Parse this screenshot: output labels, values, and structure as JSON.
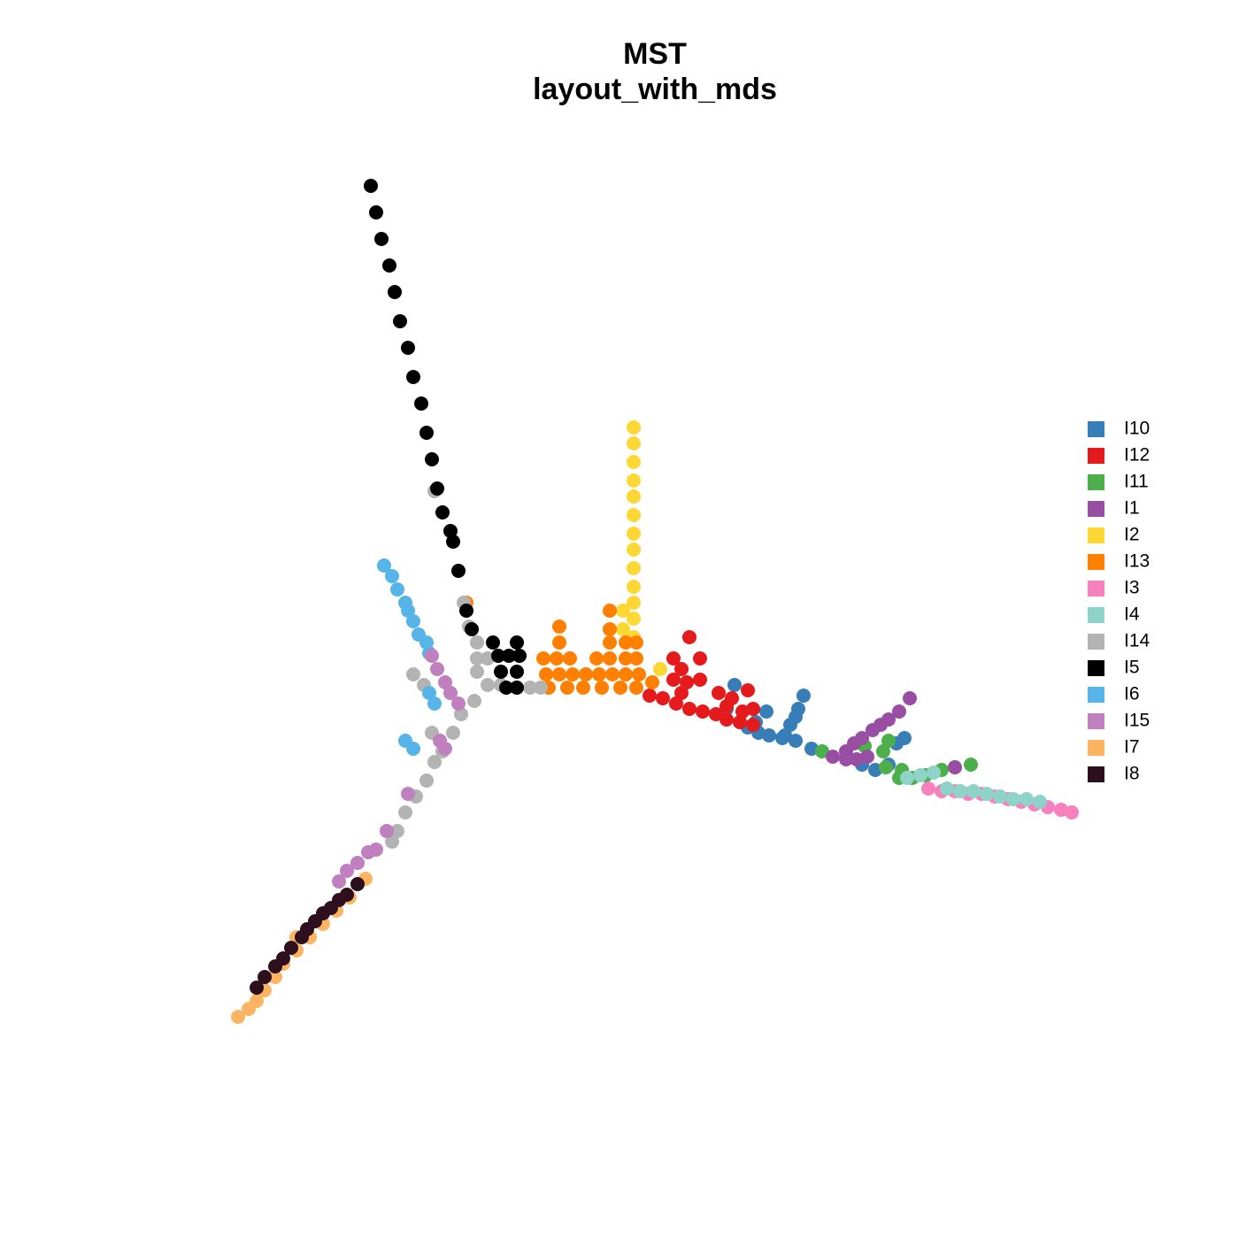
{
  "chart_data": {
    "type": "scatter",
    "title": "MST",
    "subtitle": "layout_with_mds",
    "xlim": [
      -2.4,
      2.2
    ],
    "ylim": [
      -2.0,
      2.0
    ],
    "series": [
      {
        "name": "I10",
        "color": "#377eb8",
        "x": [
          0.3,
          0.27,
          0.35,
          0.39,
          0.43,
          0.48,
          0.53,
          0.59,
          0.42,
          0.38,
          0.56,
          0.54,
          0.53,
          0.51,
          0.49,
          0.78,
          0.83,
          0.88,
          0.94,
          0.91
        ],
        "y": [
          0.02,
          -0.07,
          -0.14,
          -0.16,
          -0.17,
          -0.18,
          -0.19,
          -0.22,
          -0.08,
          -0.12,
          -0.02,
          -0.07,
          -0.1,
          -0.13,
          -0.17,
          -0.28,
          -0.3,
          -0.28,
          -0.18,
          -0.2
        ]
      },
      {
        "name": "I12",
        "color": "#e41a1c",
        "x": [
          -0.02,
          0.03,
          0.08,
          0.13,
          0.18,
          0.23,
          0.27,
          0.32,
          0.37,
          0.13,
          0.07,
          0.17,
          0.1,
          0.07,
          0.12,
          0.17,
          0.24,
          0.29,
          0.35,
          0.37,
          0.33,
          0.27,
          0.1
        ],
        "y": [
          -0.02,
          -0.03,
          -0.05,
          -0.07,
          -0.08,
          -0.09,
          -0.11,
          -0.12,
          -0.13,
          0.2,
          0.12,
          0.12,
          0.08,
          0.04,
          0.03,
          0.04,
          -0.01,
          -0.03,
          0.0,
          -0.07,
          -0.08,
          -0.06,
          -0.01
        ]
      },
      {
        "name": "I11",
        "color": "#4daf4a",
        "x": [
          0.63,
          0.79,
          0.86,
          0.88,
          0.87,
          0.92,
          0.97,
          1.02,
          1.08,
          1.13,
          1.19,
          0.93
        ],
        "y": [
          -0.23,
          -0.21,
          -0.23,
          -0.19,
          -0.29,
          -0.33,
          -0.33,
          -0.32,
          -0.3,
          -0.29,
          -0.28,
          -0.3
        ]
      },
      {
        "name": "I1",
        "color": "#984ea3",
        "x": [
          0.67,
          0.72,
          0.75,
          0.78,
          0.82,
          0.85,
          0.88,
          0.92,
          0.96,
          0.72,
          0.76,
          0.8,
          1.13
        ],
        "y": [
          -0.25,
          -0.23,
          -0.2,
          -0.18,
          -0.15,
          -0.13,
          -0.11,
          -0.08,
          -0.03,
          -0.26,
          -0.26,
          -0.25,
          -0.29
        ]
      },
      {
        "name": "I2",
        "color": "#fdd835",
        "x": [
          -0.08,
          -0.08,
          -0.08,
          -0.08,
          -0.08,
          -0.08,
          -0.08,
          -0.08,
          -0.08,
          -0.08,
          -0.08,
          -0.08,
          -0.08,
          -0.12,
          -0.12,
          0.02
        ],
        "y": [
          0.99,
          0.93,
          0.86,
          0.79,
          0.73,
          0.66,
          0.59,
          0.53,
          0.46,
          0.39,
          0.33,
          0.27,
          0.2,
          0.3,
          0.23,
          0.08
        ]
      },
      {
        "name": "I13",
        "color": "#ff7f00",
        "x": [
          -0.17,
          -0.36,
          -0.17,
          -0.36,
          -0.17,
          -0.11,
          -0.07,
          -0.42,
          -0.37,
          -0.32,
          -0.22,
          -0.17,
          -0.11,
          -0.07,
          -0.41,
          -0.36,
          -0.31,
          -0.26,
          -0.21,
          -0.16,
          -0.11,
          -0.06,
          -0.01,
          -0.71,
          -0.4,
          -0.33,
          -0.27,
          -0.2,
          -0.13,
          -0.07
        ],
        "y": [
          0.3,
          0.24,
          0.23,
          0.18,
          0.18,
          0.18,
          0.18,
          0.12,
          0.12,
          0.12,
          0.12,
          0.12,
          0.12,
          0.12,
          0.06,
          0.06,
          0.06,
          0.06,
          0.06,
          0.06,
          0.06,
          0.06,
          0.03,
          0.33,
          0.01,
          0.01,
          0.01,
          0.01,
          0.01,
          0.01
        ]
      },
      {
        "name": "I3",
        "color": "#f781bf",
        "x": [
          1.03,
          1.08,
          1.13,
          1.18,
          1.23,
          1.28,
          1.33,
          1.38,
          1.43,
          1.48,
          1.53,
          1.57
        ],
        "y": [
          -0.37,
          -0.38,
          -0.38,
          -0.39,
          -0.39,
          -0.4,
          -0.41,
          -0.42,
          -0.43,
          -0.44,
          -0.45,
          -0.46
        ]
      },
      {
        "name": "I4",
        "color": "#8dd3c7",
        "x": [
          0.95,
          1.0,
          1.05,
          1.1,
          1.15,
          1.2,
          1.25,
          1.3,
          1.35,
          1.4,
          1.45
        ],
        "y": [
          -0.33,
          -0.32,
          -0.31,
          -0.37,
          -0.38,
          -0.38,
          -0.39,
          -0.4,
          -0.41,
          -0.41,
          -0.42
        ]
      },
      {
        "name": "I14",
        "color": "#b3b3b3",
        "x": [
          -0.83,
          -0.72,
          -0.7,
          -0.67,
          -0.67,
          -0.63,
          -0.67,
          -0.63,
          -0.58,
          -0.47,
          -0.43,
          -0.68,
          -0.73,
          -0.76,
          -0.8,
          -0.84,
          -0.91,
          -0.87,
          -0.83,
          -0.86,
          -0.9,
          -0.94,
          -0.97,
          -0.99
        ],
        "y": [
          0.75,
          0.33,
          0.24,
          0.18,
          0.12,
          0.12,
          0.07,
          0.02,
          0.02,
          0.01,
          0.01,
          -0.04,
          -0.09,
          -0.16,
          -0.23,
          -0.16,
          0.06,
          0.02,
          -0.27,
          -0.34,
          -0.4,
          -0.46,
          -0.53,
          -0.57
        ]
      },
      {
        "name": "I5",
        "color": "#000000",
        "x": [
          -1.07,
          -1.05,
          -1.03,
          -1.0,
          -0.98,
          -0.96,
          -0.93,
          -0.91,
          -0.88,
          -0.86,
          -0.84,
          -0.82,
          -0.8,
          -0.77,
          -0.76,
          -0.74,
          -0.71,
          -0.69,
          -0.61,
          -0.52,
          -0.59,
          -0.55,
          -0.51,
          -0.58,
          -0.52,
          -0.56,
          -0.52
        ],
        "y": [
          1.9,
          1.8,
          1.7,
          1.6,
          1.5,
          1.39,
          1.29,
          1.18,
          1.08,
          0.97,
          0.87,
          0.76,
          0.67,
          0.6,
          0.56,
          0.45,
          0.3,
          0.23,
          0.18,
          0.18,
          0.13,
          0.13,
          0.13,
          0.07,
          0.07,
          0.01,
          0.01
        ]
      },
      {
        "name": "I6",
        "color": "#56b4e9",
        "x": [
          -1.02,
          -0.99,
          -0.97,
          -0.94,
          -0.93,
          -0.91,
          -0.89,
          -0.86,
          -0.85,
          -0.85,
          -0.83,
          -0.94,
          -0.91
        ],
        "y": [
          0.47,
          0.43,
          0.38,
          0.33,
          0.3,
          0.26,
          0.21,
          0.18,
          0.14,
          -0.01,
          -0.05,
          -0.19,
          -0.22
        ]
      },
      {
        "name": "I15",
        "color": "#c080c0",
        "x": [
          -0.84,
          -0.82,
          -0.79,
          -0.77,
          -0.74,
          -0.81,
          -0.79,
          -0.93,
          -1.01,
          -1.05,
          -1.08,
          -1.12,
          -1.16,
          -1.19
        ],
        "y": [
          0.13,
          0.08,
          0.03,
          -0.01,
          -0.05,
          -0.19,
          -0.22,
          -0.39,
          -0.53,
          -0.6,
          -0.61,
          -0.65,
          -0.68,
          -0.72
        ]
      },
      {
        "name": "I7",
        "color": "#fdb462",
        "x": [
          -1.09,
          -1.15,
          -1.2,
          -1.25,
          -1.3,
          -1.35,
          -1.35,
          -1.4,
          -1.43,
          -1.47,
          -1.5,
          -1.53,
          -1.57
        ],
        "y": [
          -0.71,
          -0.78,
          -0.83,
          -0.88,
          -0.93,
          -0.93,
          -0.98,
          -1.03,
          -1.08,
          -1.13,
          -1.17,
          -1.2,
          -1.23
        ]
      },
      {
        "name": "I8",
        "color": "#2d0f1e",
        "x": [
          -1.12,
          -1.16,
          -1.19,
          -1.22,
          -1.25,
          -1.28,
          -1.31,
          -1.33,
          -1.37,
          -1.4,
          -1.43,
          -1.47,
          -1.5
        ],
        "y": [
          -0.73,
          -0.77,
          -0.79,
          -0.82,
          -0.84,
          -0.87,
          -0.9,
          -0.93,
          -0.97,
          -1.01,
          -1.04,
          -1.08,
          -1.12
        ]
      }
    ]
  }
}
